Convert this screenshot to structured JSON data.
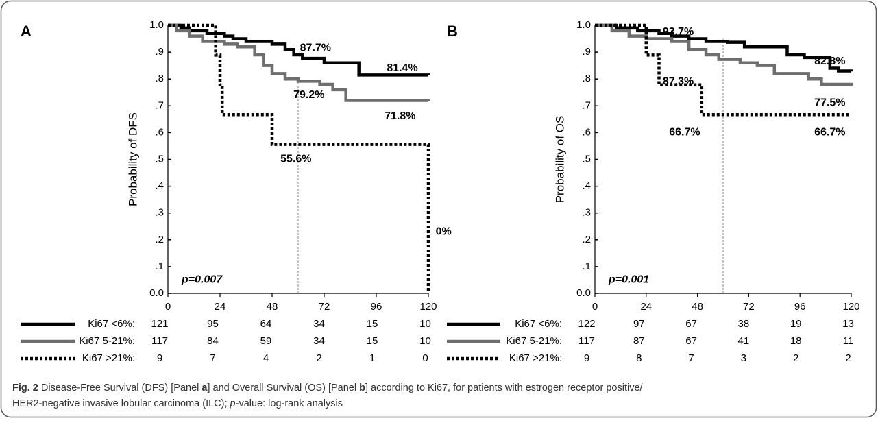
{
  "chart_data": [
    {
      "type": "line",
      "step": true,
      "panel_label": "A",
      "ylabel": "Probability of DFS",
      "p_value": "p=0.007",
      "xlim": [
        0,
        120
      ],
      "ylim": [
        0,
        1
      ],
      "xticks": [
        0,
        24,
        48,
        72,
        96,
        120
      ],
      "yticks": [
        {
          "value": 0,
          "label": "0.0"
        },
        {
          "value": 0.1,
          "label": ".1"
        },
        {
          "value": 0.2,
          "label": ".2"
        },
        {
          "value": 0.3,
          "label": ".3"
        },
        {
          "value": 0.4,
          "label": ".4"
        },
        {
          "value": 0.5,
          "label": ".5"
        },
        {
          "value": 0.6,
          "label": ".6"
        },
        {
          "value": 0.7,
          "label": ".7"
        },
        {
          "value": 0.8,
          "label": ".8"
        },
        {
          "value": 0.9,
          "label": ".9"
        },
        {
          "value": 1,
          "label": "1.0"
        }
      ],
      "ref_line": {
        "x": 60,
        "y": [
          0,
          0.8
        ]
      },
      "series": [
        {
          "name": "Ki67 <6%:",
          "color": "#000000",
          "style": "solid",
          "x": [
            0,
            6,
            10,
            18,
            26,
            30,
            36,
            48,
            54,
            58,
            62,
            72,
            88,
            120
          ],
          "values": [
            1,
            0.99,
            0.98,
            0.97,
            0.96,
            0.95,
            0.94,
            0.93,
            0.91,
            0.89,
            0.877,
            0.86,
            0.815,
            0.814
          ],
          "at_risk": [
            121,
            95,
            64,
            34,
            15,
            10
          ]
        },
        {
          "name": "Ki67 5-21%:",
          "color": "#6e6e6e",
          "style": "solid",
          "x": [
            0,
            4,
            10,
            16,
            26,
            32,
            40,
            44,
            48,
            54,
            60,
            70,
            76,
            82,
            120
          ],
          "values": [
            1,
            0.98,
            0.96,
            0.94,
            0.93,
            0.92,
            0.89,
            0.85,
            0.82,
            0.8,
            0.792,
            0.78,
            0.76,
            0.72,
            0.718
          ],
          "at_risk": [
            117,
            84,
            59,
            34,
            15,
            10
          ]
        },
        {
          "name": "Ki67 >21%:",
          "color": "#000000",
          "style": "dotted",
          "x": [
            0,
            22,
            24,
            25,
            48,
            120
          ],
          "values": [
            1,
            0.889,
            0.778,
            0.667,
            0.556,
            0
          ],
          "at_risk": [
            9,
            7,
            4,
            2,
            1,
            0
          ]
        }
      ],
      "annotations": [
        {
          "text": "87.7%",
          "x": 68,
          "y": 0.915
        },
        {
          "text": "81.4%",
          "x": 108,
          "y": 0.84
        },
        {
          "text": "79.2%",
          "x": 65,
          "y": 0.74
        },
        {
          "text": "71.8%",
          "x": 107,
          "y": 0.66
        },
        {
          "text": "55.6%",
          "x": 59,
          "y": 0.5
        },
        {
          "text": "0%",
          "x": 127,
          "y": 0.23
        }
      ]
    },
    {
      "type": "line",
      "step": true,
      "panel_label": "B",
      "ylabel": "Probability of OS",
      "p_value": "p=0.001",
      "xlim": [
        0,
        120
      ],
      "ylim": [
        0,
        1
      ],
      "xticks": [
        0,
        24,
        48,
        72,
        96,
        120
      ],
      "yticks": [
        {
          "value": 0,
          "label": "0.0"
        },
        {
          "value": 0.1,
          "label": ".1"
        },
        {
          "value": 0.2,
          "label": ".2"
        },
        {
          "value": 0.3,
          "label": ".3"
        },
        {
          "value": 0.4,
          "label": ".4"
        },
        {
          "value": 0.5,
          "label": ".5"
        },
        {
          "value": 0.6,
          "label": ".6"
        },
        {
          "value": 0.7,
          "label": ".7"
        },
        {
          "value": 0.8,
          "label": ".8"
        },
        {
          "value": 0.9,
          "label": ".9"
        },
        {
          "value": 1,
          "label": "1.0"
        }
      ],
      "ref_line": {
        "x": 60,
        "y": [
          0,
          0.95
        ]
      },
      "series": [
        {
          "name": "Ki67 <6%:",
          "color": "#000000",
          "style": "solid",
          "x": [
            0,
            10,
            20,
            30,
            36,
            44,
            52,
            62,
            70,
            90,
            98,
            110,
            114,
            120
          ],
          "values": [
            1,
            0.99,
            0.98,
            0.97,
            0.96,
            0.95,
            0.94,
            0.937,
            0.92,
            0.89,
            0.88,
            0.84,
            0.83,
            0.828
          ],
          "at_risk": [
            122,
            97,
            67,
            38,
            19,
            13
          ]
        },
        {
          "name": "Ki67 5-21%:",
          "color": "#6e6e6e",
          "style": "solid",
          "x": [
            0,
            8,
            16,
            24,
            36,
            44,
            52,
            58,
            68,
            76,
            84,
            100,
            106,
            120
          ],
          "values": [
            1,
            0.98,
            0.96,
            0.95,
            0.94,
            0.91,
            0.89,
            0.873,
            0.86,
            0.85,
            0.82,
            0.8,
            0.78,
            0.775
          ],
          "at_risk": [
            117,
            87,
            67,
            41,
            18,
            11
          ]
        },
        {
          "name": "Ki67 >21%:",
          "color": "#000000",
          "style": "dotted",
          "x": [
            0,
            24,
            30,
            50,
            120
          ],
          "values": [
            1,
            0.889,
            0.778,
            0.667,
            0.667
          ],
          "at_risk": [
            9,
            8,
            7,
            3,
            2,
            2
          ]
        }
      ],
      "annotations": [
        {
          "text": "93.7%",
          "x": 39,
          "y": 0.975
        },
        {
          "text": "82.8%",
          "x": 110,
          "y": 0.865
        },
        {
          "text": "87.3%",
          "x": 39,
          "y": 0.79
        },
        {
          "text": "77.5%",
          "x": 110,
          "y": 0.71
        },
        {
          "text": "66.7%",
          "x": 42,
          "y": 0.6
        },
        {
          "text": "66.7%",
          "x": 110,
          "y": 0.6
        }
      ]
    }
  ],
  "caption": {
    "label": "Fig. 2",
    "text1": " Disease-Free Survival (DFS) [Panel ",
    "panel_a": "a",
    "text2": "] and Overall Survival (OS) [Panel ",
    "panel_b": "b",
    "text3": "] according to Ki67, for patients with estrogen receptor positive/",
    "text4": "HER2-negative invasive lobular carcinoma (ILC); ",
    "p": "p",
    "text5": "-value: log-rank analysis"
  }
}
